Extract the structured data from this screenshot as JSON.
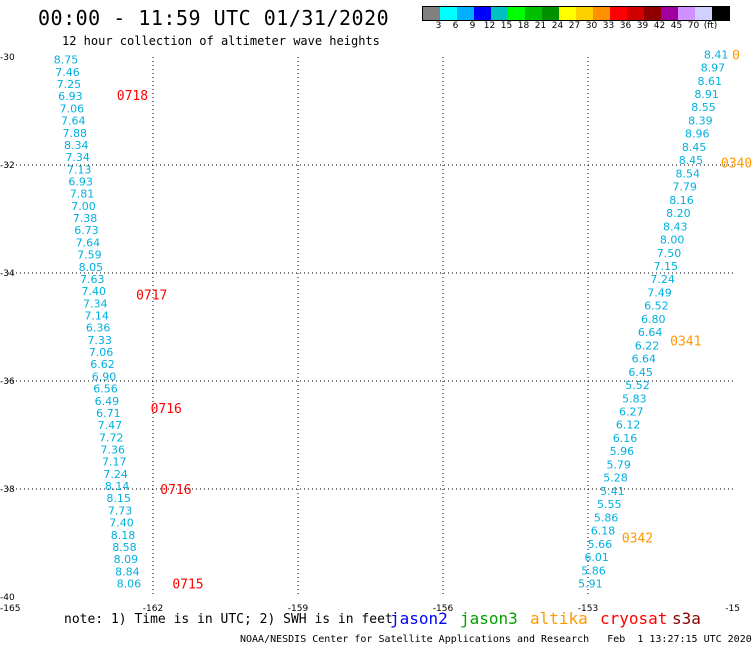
{
  "title": "00:00 - 11:59 UTC 01/31/2020",
  "subtitle": "12 hour collection of altimeter wave heights",
  "legend": {
    "colors": [
      "#808080",
      "#00ffff",
      "#00b0ff",
      "#0000ff",
      "#00c0c0",
      "#00ff00",
      "#00c000",
      "#009000",
      "#ffff00",
      "#ffd000",
      "#ff9000",
      "#ff0000",
      "#d00000",
      "#900000",
      "#a000a0",
      "#d090ff",
      "#d0d0ff",
      "#000000"
    ],
    "labels": [
      "3",
      "6",
      "9",
      "12",
      "15",
      "18",
      "21",
      "24",
      "27",
      "30",
      "33",
      "36",
      "39",
      "42",
      "45",
      "70",
      "(ft)"
    ]
  },
  "note": "note: 1) Time is in UTC; 2) SWH is in feet",
  "satellites": [
    {
      "name": "jason2",
      "color": "#0000ff"
    },
    {
      "name": "jason3",
      "color": "#00a000"
    },
    {
      "name": "altika",
      "color": "#ff9900"
    },
    {
      "name": "cryosat",
      "color": "#ff0000"
    },
    {
      "name": "s3a",
      "color": "#880000"
    }
  ],
  "credit": "NOAA/NESDIS Center for Satellite Applications and Research   Feb  1 13:27:15 UTC 2020",
  "chart_data": {
    "type": "scatter",
    "xlim": [
      -165,
      -150
    ],
    "ylim": [
      -40,
      -30
    ],
    "x_ticks": [
      "-165",
      "-162",
      "-159",
      "-156",
      "-153",
      "-15"
    ],
    "y_ticks": [
      "-30",
      "-32",
      "-34",
      "-36",
      "-38",
      "-40"
    ],
    "grid": true,
    "value_color": "#00b0e0",
    "track_a": {
      "values": [
        "8.75",
        "7.46",
        "7.25",
        "6.93",
        "7.06",
        "7.64",
        "7.88",
        "8.34",
        "7.34",
        "7.13",
        "6.93",
        "7.81",
        "7.00",
        "7.38",
        "6.73",
        "7.64",
        "7.59",
        "8.05",
        "7.63",
        "7.40",
        "7.34",
        "7.14",
        "6.36",
        "7.33",
        "7.06",
        "6.62",
        "6.90",
        "6.56",
        "6.49",
        "6.71",
        "7.47",
        "7.72",
        "7.36",
        "7.17",
        "7.24",
        "8.14",
        "8.15",
        "7.73",
        "7.40",
        "8.18",
        "8.58",
        "8.09",
        "8.84",
        "8.06"
      ],
      "lat_start": -30.05,
      "lat_end": -39.75,
      "lon_start": -163.8,
      "lon_end": -162.5
    },
    "track_a_times": [
      {
        "label": "0718",
        "lat": -30.7,
        "lon": -162.75,
        "color": "#ff0000"
      },
      {
        "label": "0717",
        "lat": -34.4,
        "lon": -162.35,
        "color": "#ff0000"
      },
      {
        "label": "0716",
        "lat": -36.5,
        "lon": -162.05,
        "color": "#ff0000"
      },
      {
        "label": "0716",
        "lat": -38.0,
        "lon": -161.85,
        "color": "#ff0000"
      },
      {
        "label": "0715",
        "lat": -39.75,
        "lon": -161.6,
        "color": "#ff0000"
      }
    ],
    "track_b": {
      "values": [
        "8.41",
        "8.97",
        "8.61",
        "8.91",
        "8.55",
        "8.39",
        "8.96",
        "8.45",
        "8.45",
        "8.54",
        "7.79",
        "8.16",
        "8.20",
        "8.43",
        "8.00",
        "7.50",
        "7.15",
        "7.24",
        "7.49",
        "6.52",
        "6.80",
        "6.64",
        "6.22",
        "6.64",
        "6.45",
        "5.52",
        "5.83",
        "6.27",
        "6.12",
        "6.16",
        "5.96",
        "5.79",
        "5.28",
        "5.41",
        "5.55",
        "5.86",
        "6.18",
        "5.66",
        "6.01",
        "5.86",
        "5.91"
      ],
      "lat_start": -29.95,
      "lat_end": -39.75,
      "lon_start": -150.35,
      "lon_end": -152.95
    },
    "track_b_times": [
      {
        "label": "0340",
        "lat": -31.95,
        "lon": -150.25,
        "color": "#ff9900"
      },
      {
        "label": "0341",
        "lat": -35.25,
        "lon": -151.3,
        "color": "#ff9900"
      },
      {
        "label": "0342",
        "lat": -38.9,
        "lon": -152.3,
        "color": "#ff9900"
      },
      {
        "label": "0",
        "lat": -29.95,
        "lon": -150.0,
        "color": "#ff9900"
      }
    ]
  }
}
